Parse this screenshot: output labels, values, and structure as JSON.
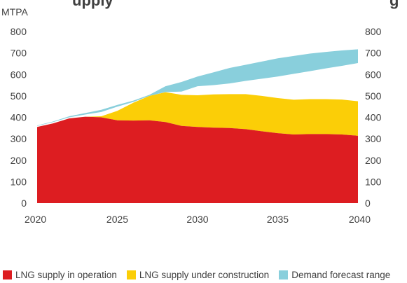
{
  "chart_data": {
    "type": "area",
    "title_fragment_left": "upply",
    "title_fragment_right": "g",
    "unit_label": "MTPA",
    "x": [
      2020,
      2021,
      2022,
      2023,
      2024,
      2025,
      2026,
      2027,
      2028,
      2029,
      2030,
      2031,
      2032,
      2033,
      2034,
      2035,
      2036,
      2037,
      2038,
      2039,
      2040
    ],
    "x_ticks": [
      "2020",
      "2025",
      "2030",
      "2035",
      "2040"
    ],
    "y_ticks": [
      "0",
      "100",
      "200",
      "300",
      "400",
      "500",
      "600",
      "700",
      "800"
    ],
    "xlim": [
      2020,
      2040
    ],
    "ylim": [
      0,
      800
    ],
    "grid": false,
    "legend_position": "bottom",
    "series": [
      {
        "name": "LNG supply in operation",
        "color": "#dd1d21",
        "values": [
          355,
          372,
          395,
          403,
          400,
          386,
          385,
          386,
          378,
          360,
          355,
          352,
          350,
          345,
          335,
          326,
          320,
          322,
          322,
          320,
          314
        ]
      },
      {
        "name": "LNG supply under construction",
        "color": "#fbce07",
        "values": [
          355,
          372,
          395,
          403,
          405,
          430,
          468,
          500,
          517,
          505,
          503,
          507,
          508,
          508,
          500,
          490,
          482,
          485,
          485,
          483,
          475
        ]
      },
      {
        "name": "Demand forecast range",
        "color": "#89cfdc",
        "lower": [
          360,
          378,
          400,
          413,
          425,
          450,
          472,
          500,
          518,
          520,
          545,
          550,
          558,
          570,
          580,
          590,
          603,
          615,
          628,
          640,
          653
        ],
        "upper": [
          362,
          381,
          405,
          420,
          435,
          458,
          478,
          505,
          545,
          565,
          590,
          610,
          630,
          645,
          660,
          675,
          686,
          697,
          705,
          712,
          717
        ]
      }
    ]
  }
}
